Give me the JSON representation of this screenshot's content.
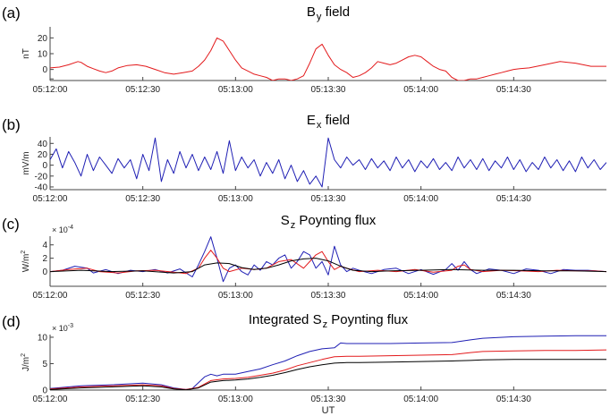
{
  "chart_data": [
    {
      "type": "line",
      "panel_label": "(a)",
      "title": "B",
      "title_sub": "y",
      "title_rest": " field",
      "ylabel": "nT",
      "ylabel_sup": "",
      "scale_label": "",
      "scale_sup": "",
      "ylim": [
        -7,
        27
      ],
      "yticks": [
        -6,
        0,
        10,
        20
      ],
      "ytick_labels": [
        "",
        "0",
        "10",
        "20"
      ],
      "xlim": [
        0,
        180
      ],
      "series": [
        {
          "name": "By",
          "color": "#e31a1c",
          "x": [
            0,
            3,
            6,
            9,
            10,
            12,
            14,
            16,
            18,
            20,
            22,
            25,
            28,
            31,
            34,
            37,
            40,
            43,
            46,
            48,
            50,
            52,
            54,
            56,
            58,
            60,
            62,
            64,
            66,
            68,
            70,
            72,
            74,
            76,
            78,
            80,
            82,
            84,
            86,
            88,
            90,
            92,
            94,
            96,
            98,
            100,
            102,
            104,
            106,
            108,
            110,
            112,
            114,
            116,
            118,
            120,
            122,
            124,
            126,
            128,
            130,
            132,
            134,
            136,
            138,
            140,
            142,
            144,
            146,
            148,
            150,
            152,
            155,
            160,
            165,
            170,
            175,
            180
          ],
          "y": [
            1,
            1.5,
            3,
            5,
            4.5,
            2,
            0.5,
            -1,
            -2,
            -1,
            1,
            2.5,
            3,
            2,
            0,
            -2,
            -3,
            -2,
            -1,
            2,
            6,
            12,
            20,
            18,
            12,
            6,
            1,
            -1,
            -3,
            -4,
            -5,
            -7,
            -6,
            -6,
            -7,
            -6,
            -4,
            4,
            13,
            16,
            9,
            3,
            0,
            -2,
            -5,
            -4,
            -2,
            1,
            5,
            4,
            3,
            4,
            6,
            8,
            9,
            8,
            5,
            2,
            0,
            -1,
            -5,
            -7,
            -7,
            -6,
            -6,
            -5,
            -4,
            -3,
            -2,
            -1,
            0,
            0.5,
            1,
            3,
            5,
            4,
            2,
            2
          ]
        }
      ]
    },
    {
      "type": "line",
      "panel_label": "(b)",
      "title": "E",
      "title_sub": "x",
      "title_rest": " field",
      "ylabel": "mV/m",
      "ylabel_sup": "",
      "scale_label": "",
      "scale_sup": "",
      "ylim": [
        -45,
        52
      ],
      "yticks": [
        -40,
        -20,
        0,
        20,
        40
      ],
      "ytick_labels": [
        "-40",
        "-20",
        "0",
        "20",
        "40"
      ],
      "xlim": [
        0,
        180
      ],
      "series": [
        {
          "name": "Ex",
          "color": "#1f1fb4",
          "x": [
            0,
            2,
            4,
            6,
            8,
            10,
            12,
            14,
            16,
            18,
            20,
            22,
            24,
            26,
            28,
            30,
            32,
            34,
            36,
            38,
            40,
            42,
            44,
            46,
            48,
            50,
            52,
            54,
            56,
            58,
            60,
            62,
            64,
            66,
            68,
            70,
            72,
            74,
            76,
            78,
            80,
            82,
            84,
            86,
            88,
            90,
            92,
            94,
            96,
            98,
            100,
            102,
            104,
            106,
            108,
            110,
            112,
            114,
            116,
            118,
            120,
            122,
            124,
            126,
            128,
            130,
            132,
            134,
            136,
            138,
            140,
            142,
            144,
            146,
            148,
            150,
            152,
            154,
            156,
            158,
            160,
            162,
            164,
            166,
            168,
            170,
            172,
            174,
            176,
            178,
            180
          ],
          "y": [
            10,
            30,
            -5,
            25,
            5,
            -20,
            20,
            -10,
            15,
            0,
            -15,
            12,
            -5,
            10,
            -25,
            20,
            -10,
            50,
            -30,
            10,
            -15,
            25,
            -5,
            20,
            -10,
            15,
            -8,
            25,
            -15,
            45,
            -10,
            15,
            -5,
            10,
            -20,
            5,
            -15,
            10,
            -25,
            0,
            -30,
            -10,
            -35,
            -20,
            -40,
            50,
            10,
            -5,
            15,
            0,
            10,
            -8,
            12,
            -5,
            8,
            -10,
            15,
            -5,
            10,
            -12,
            8,
            -5,
            12,
            -8,
            5,
            -10,
            15,
            -5,
            10,
            -8,
            12,
            -10,
            8,
            -5,
            15,
            -8,
            10,
            -12,
            5,
            -8,
            15,
            -5,
            10,
            -10,
            8,
            -12,
            15,
            -5,
            10,
            -8,
            5
          ]
        }
      ]
    },
    {
      "type": "line",
      "panel_label": "(c)",
      "title": "S",
      "title_sub": "z",
      "title_rest": " Poynting flux",
      "ylabel": "W/m",
      "ylabel_sup": "2",
      "scale_label": "× 10",
      "scale_sup": "-4",
      "ylim": [
        -2.2,
        5.3
      ],
      "yticks": [
        0,
        2,
        4
      ],
      "ytick_labels": [
        "0",
        "2",
        "4"
      ],
      "xlim": [
        0,
        180
      ],
      "series": [
        {
          "name": "blue",
          "color": "#1f1fb4",
          "x": [
            0,
            4,
            8,
            12,
            14,
            18,
            22,
            26,
            30,
            34,
            38,
            42,
            46,
            48,
            50,
            52,
            54,
            56,
            58,
            60,
            62,
            64,
            66,
            68,
            70,
            72,
            74,
            76,
            78,
            80,
            82,
            84,
            86,
            88,
            90,
            92,
            94,
            96,
            98,
            100,
            104,
            108,
            112,
            116,
            120,
            124,
            128,
            130,
            132,
            134,
            136,
            138,
            142,
            146,
            150,
            154,
            158,
            162,
            166,
            170,
            174,
            180
          ],
          "y": [
            0,
            0.2,
            0.8,
            0.5,
            -0.2,
            0.3,
            -0.3,
            0.2,
            0,
            0.3,
            -0.2,
            0.4,
            -0.8,
            1,
            3,
            5.2,
            2,
            -1.5,
            0.5,
            1,
            0,
            -0.5,
            1,
            0.2,
            1.5,
            1,
            2,
            2.5,
            0.5,
            1.5,
            3,
            2.5,
            0.5,
            1.5,
            -0.5,
            3.8,
            1,
            0,
            0.5,
            0.2,
            -0.3,
            0.3,
            0.5,
            -0.3,
            0.3,
            -0.4,
            0.3,
            1.2,
            0.2,
            1.5,
            0.3,
            -0.3,
            0.4,
            0.2,
            -0.3,
            0.4,
            0.2,
            -0.3,
            0.3,
            0.2,
            0.2,
            0
          ]
        },
        {
          "name": "red",
          "color": "#e31a1c",
          "x": [
            0,
            6,
            12,
            16,
            22,
            28,
            34,
            40,
            44,
            48,
            50,
            52,
            54,
            56,
            58,
            62,
            66,
            70,
            74,
            78,
            82,
            84,
            86,
            88,
            90,
            92,
            94,
            96,
            100,
            106,
            112,
            118,
            124,
            130,
            132,
            134,
            136,
            140,
            146,
            152,
            158,
            164,
            170,
            176,
            180
          ],
          "y": [
            0,
            0.3,
            0.5,
            0,
            -0.2,
            0.1,
            0.2,
            -0.1,
            -0.3,
            0.5,
            2,
            3.2,
            2,
            0.5,
            0,
            0.5,
            0.3,
            0.5,
            1.5,
            1.8,
            0.5,
            1.5,
            2.5,
            3,
            1.5,
            0.3,
            0.8,
            0.5,
            0,
            0.2,
            0,
            0.3,
            -0.1,
            0.2,
            0.8,
            1,
            0.3,
            0,
            0.2,
            0.1,
            0,
            0.2,
            0.1,
            0.1,
            0
          ]
        },
        {
          "name": "black",
          "color": "#000000",
          "x": [
            0,
            10,
            20,
            30,
            40,
            46,
            50,
            54,
            58,
            62,
            66,
            70,
            74,
            78,
            82,
            86,
            90,
            94,
            98,
            104,
            110,
            120,
            130,
            140,
            150,
            160,
            170,
            180
          ],
          "y": [
            0,
            0.2,
            0,
            0.1,
            -0.2,
            0,
            1,
            1.3,
            1.2,
            0.6,
            0.3,
            0.5,
            1,
            1.6,
            1.9,
            2,
            1.6,
            0.8,
            0.2,
            0,
            0.1,
            0.2,
            0.3,
            0.2,
            0.2,
            0.1,
            0.1,
            0
          ]
        }
      ]
    },
    {
      "type": "line",
      "panel_label": "(d)",
      "title": "Integrated S",
      "title_sub": "z",
      "title_rest": " Poynting flux",
      "ylabel": "J/m",
      "ylabel_sup": "2",
      "scale_label": "× 10",
      "scale_sup": "-3",
      "ylim": [
        0,
        10.5
      ],
      "yticks": [
        0,
        5,
        10
      ],
      "ytick_labels": [
        "0",
        "5",
        "10"
      ],
      "xlim": [
        0,
        180
      ],
      "series": [
        {
          "name": "blue",
          "color": "#1f1fb4",
          "x": [
            0,
            10,
            20,
            30,
            36,
            40,
            44,
            46,
            50,
            52,
            54,
            56,
            60,
            64,
            68,
            72,
            76,
            80,
            84,
            88,
            92,
            94,
            96,
            100,
            110,
            120,
            130,
            136,
            140,
            150,
            160,
            170,
            180
          ],
          "y": [
            0.3,
            0.8,
            1,
            1.3,
            1,
            0.4,
            0.1,
            0.3,
            2.5,
            3,
            2.7,
            3,
            3,
            3.5,
            4,
            4.8,
            5.5,
            6.5,
            7.3,
            7.8,
            8,
            8.9,
            8.8,
            8.8,
            8.8,
            8.9,
            9,
            9.5,
            9.8,
            10.1,
            10.2,
            10.3,
            10.3
          ]
        },
        {
          "name": "red",
          "color": "#e31a1c",
          "x": [
            0,
            10,
            20,
            30,
            36,
            40,
            44,
            48,
            52,
            56,
            60,
            64,
            68,
            72,
            76,
            80,
            84,
            88,
            92,
            96,
            100,
            110,
            120,
            130,
            136,
            140,
            150,
            160,
            170,
            180
          ],
          "y": [
            0.2,
            0.6,
            0.8,
            1,
            0.8,
            0.3,
            0.1,
            0.5,
            1.8,
            2.1,
            2.2,
            2.4,
            2.8,
            3.2,
            3.8,
            4.6,
            5.2,
            5.8,
            6.3,
            6.4,
            6.4,
            6.5,
            6.6,
            6.7,
            7.1,
            7.3,
            7.4,
            7.5,
            7.5,
            7.6
          ]
        },
        {
          "name": "black",
          "color": "#000000",
          "x": [
            0,
            10,
            20,
            30,
            36,
            40,
            44,
            48,
            52,
            56,
            60,
            64,
            68,
            72,
            76,
            80,
            84,
            88,
            92,
            96,
            100,
            110,
            120,
            130,
            136,
            140,
            150,
            160,
            170,
            180
          ],
          "y": [
            0.1,
            0.4,
            0.6,
            0.8,
            0.6,
            0.2,
            0.05,
            0.4,
            1.5,
            1.8,
            1.9,
            2.1,
            2.4,
            2.8,
            3.3,
            3.9,
            4.4,
            4.8,
            5.1,
            5.2,
            5.2,
            5.3,
            5.4,
            5.5,
            5.6,
            5.7,
            5.8,
            5.8,
            5.8,
            5.8
          ]
        }
      ]
    }
  ],
  "xaxis": {
    "tick_values": [
      0,
      30,
      60,
      90,
      120,
      150
    ],
    "tick_labels": [
      "05:12:00",
      "05:12:30",
      "05:13:00",
      "05:13:30",
      "05:14:00",
      "05:14:30"
    ],
    "xlabel": "UT"
  }
}
